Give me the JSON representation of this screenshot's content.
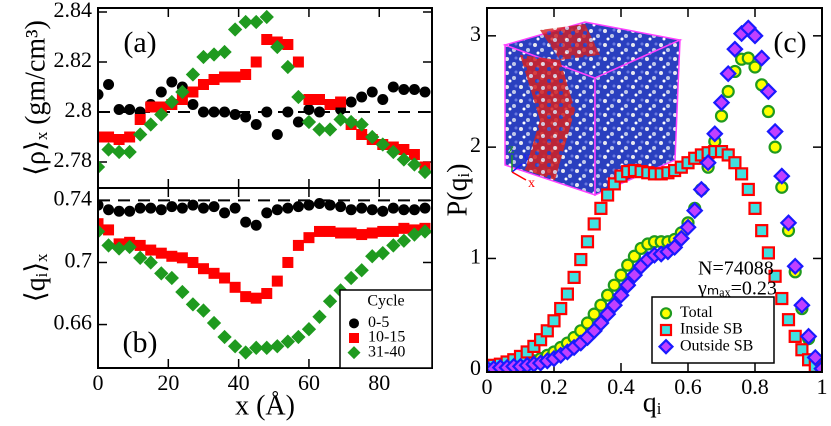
{
  "chart_data": [
    {
      "type": "scatter",
      "title": "(a)",
      "ylabel": "⟨ρ⟩ₓ (gm/cm³)",
      "x": [
        0,
        3,
        6,
        9,
        12,
        15,
        18,
        21,
        24,
        27,
        30,
        33,
        36,
        39,
        42,
        45,
        48,
        51,
        54,
        57,
        60,
        63,
        66,
        69,
        72,
        75,
        78,
        81,
        84,
        87,
        90,
        93
      ],
      "xlim": [
        0,
        95
      ],
      "ylim": [
        2.7696,
        2.8416
      ],
      "yticks": [
        2.78,
        2.8,
        2.82,
        2.84
      ],
      "reference_line": 2.8,
      "series": [
        {
          "color": "#000000",
          "marker": "circle",
          "values": [
            2.807,
            2.811,
            2.801,
            2.801,
            2.8,
            2.803,
            2.808,
            2.812,
            2.81,
            2.803,
            2.8,
            2.8,
            2.8,
            2.799,
            2.798,
            2.795,
            2.8,
            2.791,
            2.8,
            2.796,
            2.801,
            2.8,
            2.803,
            2.801,
            2.804,
            2.806,
            2.808,
            2.805,
            2.81,
            2.809,
            2.809,
            2.808
          ]
        },
        {
          "color": "#ff0000",
          "marker": "square",
          "values": [
            2.79,
            2.79,
            2.789,
            2.79,
            2.797,
            2.802,
            2.802,
            2.803,
            2.805,
            2.808,
            2.811,
            2.813,
            2.814,
            2.814,
            2.815,
            2.82,
            2.829,
            2.828,
            2.827,
            2.82,
            2.805,
            2.805,
            2.803,
            2.804,
            2.795,
            2.791,
            2.789,
            2.787,
            2.786,
            2.785,
            2.783,
            2.778
          ]
        },
        {
          "color": "#1f9a1f",
          "marker": "diamond",
          "values": [
            2.778,
            2.785,
            2.784,
            2.784,
            2.791,
            2.795,
            2.799,
            2.804,
            2.808,
            2.815,
            2.822,
            2.823,
            2.824,
            2.833,
            2.836,
            2.836,
            2.838,
            2.826,
            2.818,
            2.806,
            2.796,
            2.793,
            2.793,
            2.797,
            2.796,
            2.795,
            2.79,
            2.787,
            2.784,
            2.781,
            2.779,
            2.776
          ]
        }
      ]
    },
    {
      "type": "scatter",
      "title": "(b)",
      "xlabel": "x (Å)",
      "ylabel": "⟨qᵢ⟩ₓ",
      "x": [
        0,
        3,
        6,
        9,
        12,
        15,
        18,
        21,
        24,
        27,
        30,
        33,
        36,
        39,
        42,
        45,
        48,
        51,
        54,
        57,
        60,
        63,
        66,
        69,
        72,
        75,
        78,
        81,
        84,
        87,
        90,
        93
      ],
      "xlim": [
        0,
        95
      ],
      "xticks": [
        0,
        20,
        40,
        60,
        80
      ],
      "ylim": [
        0.632,
        0.748
      ],
      "yticks": [
        0.66,
        0.7,
        0.74
      ],
      "reference_line": 0.74,
      "legend_title": "Cycle",
      "legend": "lower right",
      "series": [
        {
          "name": "0-5",
          "color": "#000000",
          "marker": "circle",
          "values": [
            0.737,
            0.734,
            0.733,
            0.733,
            0.735,
            0.735,
            0.734,
            0.736,
            0.735,
            0.737,
            0.735,
            0.736,
            0.732,
            0.735,
            0.726,
            0.724,
            0.732,
            0.734,
            0.735,
            0.736,
            0.737,
            0.738,
            0.737,
            0.736,
            0.734,
            0.735,
            0.734,
            0.733,
            0.735,
            0.734,
            0.734,
            0.735
          ]
        },
        {
          "name": "10-15",
          "color": "#ff0000",
          "marker": "square",
          "values": [
            0.725,
            0.721,
            0.712,
            0.713,
            0.711,
            0.708,
            0.706,
            0.704,
            0.703,
            0.7,
            0.696,
            0.693,
            0.69,
            0.684,
            0.678,
            0.677,
            0.68,
            0.688,
            0.7,
            0.711,
            0.716,
            0.72,
            0.72,
            0.719,
            0.719,
            0.718,
            0.719,
            0.72,
            0.72,
            0.722,
            0.721,
            0.722
          ]
        },
        {
          "name": "31-40",
          "color": "#1f9a1f",
          "marker": "diamond",
          "values": [
            0.72,
            0.711,
            0.709,
            0.71,
            0.703,
            0.7,
            0.693,
            0.69,
            0.681,
            0.673,
            0.669,
            0.661,
            0.652,
            0.646,
            0.642,
            0.645,
            0.645,
            0.646,
            0.649,
            0.652,
            0.657,
            0.665,
            0.675,
            0.682,
            0.69,
            0.695,
            0.704,
            0.706,
            0.711,
            0.714,
            0.718,
            0.72
          ]
        }
      ]
    },
    {
      "type": "scatter",
      "title": "(c)",
      "xlabel": "qᵢ",
      "ylabel": "P(qᵢ)",
      "annotations": [
        "N=74088",
        "γₘₐₓ=0.23"
      ],
      "inset_axis_labels": [
        "z",
        "y",
        "x"
      ],
      "x": [
        0,
        0.02,
        0.04,
        0.06,
        0.08,
        0.1,
        0.12,
        0.14,
        0.16,
        0.18,
        0.2,
        0.22,
        0.24,
        0.26,
        0.28,
        0.3,
        0.32,
        0.34,
        0.36,
        0.38,
        0.4,
        0.42,
        0.44,
        0.46,
        0.48,
        0.5,
        0.52,
        0.54,
        0.56,
        0.58,
        0.6,
        0.62,
        0.64,
        0.66,
        0.68,
        0.7,
        0.72,
        0.74,
        0.76,
        0.78,
        0.8,
        0.82,
        0.84,
        0.86,
        0.88,
        0.9,
        0.92,
        0.94,
        0.96,
        0.98,
        1
      ],
      "xlim": [
        0,
        1
      ],
      "xticks": [
        0,
        0.2,
        0.4,
        0.6,
        0.8,
        1
      ],
      "ylim": [
        -0.02,
        3.25
      ],
      "yticks": [
        0,
        1,
        2,
        3
      ],
      "legend": "lower center",
      "series": [
        {
          "name": "Total",
          "color": "#ffff00",
          "edgecolor": "#1f9a1f",
          "marker": "circle",
          "values": [
            0.02,
            0.02,
            0.03,
            0.03,
            0.04,
            0.05,
            0.06,
            0.08,
            0.1,
            0.13,
            0.16,
            0.2,
            0.24,
            0.29,
            0.35,
            0.42,
            0.5,
            0.58,
            0.67,
            0.76,
            0.85,
            0.94,
            1.02,
            1.09,
            1.13,
            1.15,
            1.15,
            1.15,
            1.17,
            1.23,
            1.32,
            1.45,
            1.62,
            1.82,
            2.05,
            2.28,
            2.5,
            2.68,
            2.79,
            2.8,
            2.72,
            2.56,
            2.32,
            2.0,
            1.64,
            1.25,
            0.88,
            0.55,
            0.28,
            0.1,
            0.01
          ]
        },
        {
          "name": "Inside SB",
          "color": "#40e0e0",
          "edgecolor": "#ff0000",
          "marker": "square",
          "values": [
            0.03,
            0.04,
            0.05,
            0.07,
            0.09,
            0.12,
            0.16,
            0.21,
            0.27,
            0.35,
            0.44,
            0.55,
            0.68,
            0.83,
            0.99,
            1.15,
            1.31,
            1.45,
            1.57,
            1.67,
            1.74,
            1.78,
            1.79,
            1.78,
            1.77,
            1.76,
            1.76,
            1.77,
            1.79,
            1.82,
            1.86,
            1.9,
            1.93,
            1.95,
            1.96,
            1.96,
            1.93,
            1.86,
            1.76,
            1.62,
            1.45,
            1.25,
            1.05,
            0.84,
            0.64,
            0.45,
            0.3,
            0.18,
            0.09,
            0.03,
            0.01
          ]
        },
        {
          "name": "Outside SB",
          "color": "#c040ff",
          "edgecolor": "#1a1aff",
          "marker": "diamond",
          "values": [
            0.01,
            0.01,
            0.02,
            0.02,
            0.03,
            0.03,
            0.04,
            0.05,
            0.06,
            0.08,
            0.1,
            0.13,
            0.16,
            0.2,
            0.24,
            0.29,
            0.35,
            0.42,
            0.5,
            0.58,
            0.67,
            0.76,
            0.85,
            0.93,
            0.99,
            1.03,
            1.04,
            1.06,
            1.1,
            1.18,
            1.28,
            1.43,
            1.62,
            1.86,
            2.12,
            2.4,
            2.66,
            2.88,
            3.02,
            3.07,
            3.0,
            2.8,
            2.5,
            2.14,
            1.74,
            1.32,
            0.93,
            0.58,
            0.3,
            0.11,
            0.01
          ]
        }
      ]
    }
  ]
}
